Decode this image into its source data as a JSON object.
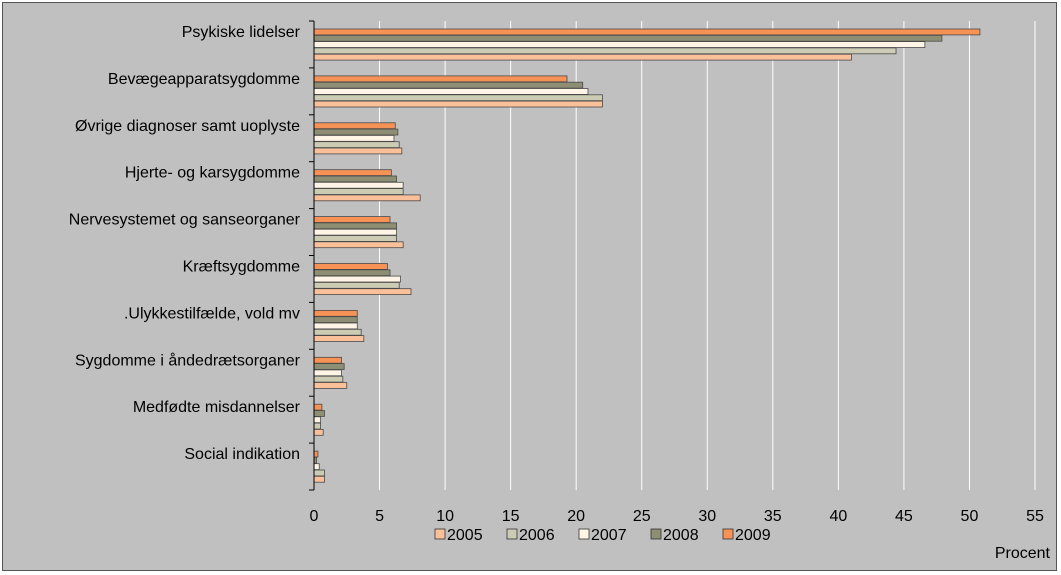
{
  "chart_data": {
    "type": "bar",
    "orientation": "horizontal",
    "categories": [
      "Psykiske lidelser",
      "Bevægeapparatsygdomme",
      "Øvrige diagnoser samt uoplyste",
      "Hjerte- og karsygdomme",
      "Nervesystemet og sanseorganer",
      "Kræftsygdomme",
      ".Ulykkestilfælde, vold mv",
      "Sygdomme i åndedrætsorganer",
      "Medfødte misdannelser",
      "Social indikation"
    ],
    "series": [
      {
        "name": "2005",
        "color": "#f9c09a",
        "values": [
          41.0,
          22.0,
          6.7,
          8.1,
          6.8,
          7.4,
          3.8,
          2.5,
          0.7,
          0.8
        ]
      },
      {
        "name": "2006",
        "color": "#ccccb4",
        "values": [
          44.4,
          22.0,
          6.5,
          6.8,
          6.3,
          6.5,
          3.6,
          2.2,
          0.5,
          0.8
        ]
      },
      {
        "name": "2007",
        "color": "#fff5e6",
        "values": [
          46.6,
          20.9,
          6.1,
          6.8,
          6.3,
          6.6,
          3.3,
          2.1,
          0.5,
          0.4
        ]
      },
      {
        "name": "2008",
        "color": "#8e8e74",
        "values": [
          47.9,
          20.5,
          6.4,
          6.3,
          6.3,
          5.8,
          3.3,
          2.3,
          0.8,
          0.2
        ]
      },
      {
        "name": "2009",
        "color": "#f79256",
        "values": [
          50.8,
          19.3,
          6.2,
          5.9,
          5.8,
          5.6,
          3.3,
          2.1,
          0.6,
          0.3
        ]
      }
    ],
    "draw_order": [
      "2009",
      "2008",
      "2007",
      "2006",
      "2005"
    ],
    "xlim": [
      0,
      55
    ],
    "xticks": [
      0,
      5,
      10,
      15,
      20,
      25,
      30,
      35,
      40,
      45,
      50,
      55
    ],
    "xlabel": "Procent",
    "grid": "vertical",
    "legend": "bottom",
    "plot_background": "#c0c0c0"
  }
}
